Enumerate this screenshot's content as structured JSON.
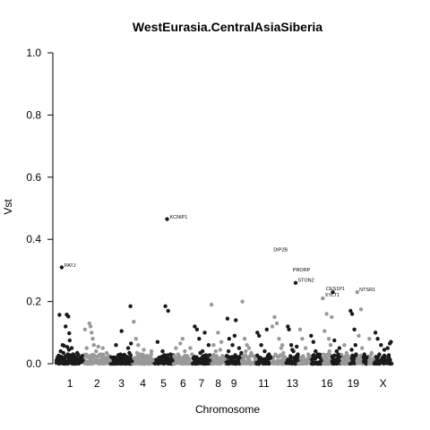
{
  "chart_data": {
    "type": "scatter",
    "title": "WestEurasia.CentralAsiaSiberia",
    "xlabel": "Chromosome",
    "ylabel": "Vst",
    "ylim": [
      0,
      1
    ],
    "yticks": [
      "0.0",
      "0.2",
      "0.4",
      "0.6",
      "0.8",
      "1.0"
    ],
    "grid": false,
    "legend": "none",
    "colors": {
      "odd": "#1a1a1a",
      "even": "#999999"
    },
    "chromosomes": [
      {
        "label": "1",
        "shown": true,
        "start": 0,
        "len": 248
      },
      {
        "label": "2",
        "shown": true,
        "start": 248,
        "len": 242
      },
      {
        "label": "3",
        "shown": true,
        "start": 490,
        "len": 198
      },
      {
        "label": "4",
        "shown": true,
        "start": 688,
        "len": 190
      },
      {
        "label": "5",
        "shown": true,
        "start": 878,
        "len": 181
      },
      {
        "label": "6",
        "shown": true,
        "start": 1059,
        "len": 171
      },
      {
        "label": "7",
        "shown": true,
        "start": 1230,
        "len": 159
      },
      {
        "label": "8",
        "shown": true,
        "start": 1389,
        "len": 145
      },
      {
        "label": "9",
        "shown": true,
        "start": 1534,
        "len": 138
      },
      {
        "label": "10",
        "shown": false,
        "start": 1672,
        "len": 134
      },
      {
        "label": "11",
        "shown": true,
        "start": 1806,
        "len": 135
      },
      {
        "label": "12",
        "shown": false,
        "start": 1941,
        "len": 133
      },
      {
        "label": "13",
        "shown": true,
        "start": 2074,
        "len": 114
      },
      {
        "label": "14",
        "shown": false,
        "start": 2188,
        "len": 107
      },
      {
        "label": "15",
        "shown": false,
        "start": 2295,
        "len": 102
      },
      {
        "label": "16",
        "shown": true,
        "start": 2397,
        "len": 90
      },
      {
        "label": "17",
        "shown": false,
        "start": 2487,
        "len": 83
      },
      {
        "label": "18",
        "shown": false,
        "start": 2570,
        "len": 80
      },
      {
        "label": "19",
        "shown": true,
        "start": 2650,
        "len": 59
      },
      {
        "label": "20",
        "shown": false,
        "start": 2709,
        "len": 64
      },
      {
        "label": "21",
        "shown": false,
        "start": 2773,
        "len": 47
      },
      {
        "label": "22",
        "shown": false,
        "start": 2820,
        "len": 51
      },
      {
        "label": "X",
        "shown": true,
        "start": 2871,
        "len": 156
      }
    ],
    "xlim": [
      -30,
      3057
    ],
    "series": [
      {
        "points": [
          [
            50,
            0.31
          ],
          [
            30,
            0.157
          ],
          [
            95,
            0.158
          ],
          [
            110,
            0.152
          ],
          [
            118,
            0.098
          ],
          [
            70,
            0.058
          ],
          [
            85,
            0.12
          ],
          [
            122,
            0.075
          ],
          [
            58,
            0.06
          ],
          [
            100,
            0.054
          ],
          [
            40,
            0.04
          ],
          [
            65,
            0.035
          ],
          [
            105,
            0.03
          ],
          [
            150,
            0.03
          ],
          [
            180,
            0.02
          ],
          [
            210,
            0.015
          ],
          [
            235,
            0.025
          ],
          [
            20,
            0.015
          ],
          [
            75,
            0.01
          ],
          [
            130,
            0.012
          ],
          [
            160,
            0.01
          ],
          [
            200,
            0.008
          ],
          [
            12,
            0.02
          ],
          [
            90,
            0.025
          ],
          [
            140,
            0.05
          ],
          [
            225,
            0.005
          ],
          [
            190,
            0.035
          ],
          [
            115,
            0.045
          ],
          [
            240,
            0.01
          ],
          [
            55,
            0.008
          ],
          [
            510,
            0.01
          ],
          [
            540,
            0.06
          ],
          [
            560,
            0.02
          ],
          [
            580,
            0.03
          ],
          [
            600,
            0.015
          ],
          [
            620,
            0.012
          ],
          [
            640,
            0.01
          ],
          [
            660,
            0.035
          ],
          [
            670,
            0.185
          ],
          [
            675,
            0.065
          ],
          [
            650,
            0.05
          ],
          [
            590,
            0.105
          ],
          [
            530,
            0.02
          ],
          [
            620,
            0.025
          ],
          [
            683,
            0.008
          ],
          [
            900,
            0.005
          ],
          [
            930,
            0.02
          ],
          [
            960,
            0.04
          ],
          [
            985,
            0.185
          ],
          [
            1000,
            0.465
          ],
          [
            1010,
            0.17
          ],
          [
            1030,
            0.03
          ],
          [
            1050,
            0.01
          ],
          [
            915,
            0.07
          ],
          [
            945,
            0.012
          ],
          [
            970,
            0.008
          ],
          [
            1020,
            0.015
          ],
          [
            1250,
            0.12
          ],
          [
            1270,
            0.11
          ],
          [
            1290,
            0.08
          ],
          [
            1320,
            0.04
          ],
          [
            1350,
            0.02
          ],
          [
            1375,
            0.06
          ],
          [
            1340,
            0.1
          ],
          [
            1300,
            0.035
          ],
          [
            1260,
            0.015
          ],
          [
            1385,
            0.01
          ],
          [
            1545,
            0.145
          ],
          [
            1560,
            0.08
          ],
          [
            1590,
            0.06
          ],
          [
            1620,
            0.14
          ],
          [
            1650,
            0.05
          ],
          [
            1670,
            0.035
          ],
          [
            1600,
            0.02
          ],
          [
            1635,
            0.015
          ],
          [
            1575,
            0.01
          ],
          [
            1555,
            0.04
          ],
          [
            1610,
            0.09
          ],
          [
            1815,
            0.1
          ],
          [
            1830,
            0.09
          ],
          [
            1850,
            0.06
          ],
          [
            1880,
            0.04
          ],
          [
            1900,
            0.11
          ],
          [
            1920,
            0.03
          ],
          [
            1935,
            0.02
          ],
          [
            1860,
            0.012
          ],
          [
            1845,
            0.008
          ],
          [
            1910,
            0.015
          ],
          [
            2090,
            0.12
          ],
          [
            2100,
            0.11
          ],
          [
            2120,
            0.06
          ],
          [
            2140,
            0.04
          ],
          [
            2160,
            0.26
          ],
          [
            2170,
            0.055
          ],
          [
            2180,
            0.03
          ],
          [
            2150,
            0.012
          ],
          [
            2110,
            0.015
          ],
          [
            2130,
            0.045
          ],
          [
            2405,
            0.21
          ],
          [
            2420,
            0.105
          ],
          [
            2440,
            0.16
          ],
          [
            2460,
            0.08
          ],
          [
            2475,
            0.06
          ],
          [
            2485,
            0.15
          ],
          [
            2450,
            0.03
          ],
          [
            2430,
            0.015
          ],
          [
            2465,
            0.04
          ],
          [
            2655,
            0.17
          ],
          [
            2670,
            0.16
          ],
          [
            2690,
            0.11
          ],
          [
            2700,
            0.06
          ],
          [
            2705,
            0.03
          ],
          [
            2680,
            0.02
          ],
          [
            2665,
            0.045
          ],
          [
            2880,
            0.1
          ],
          [
            2900,
            0.08
          ],
          [
            2930,
            0.06
          ],
          [
            2960,
            0.045
          ],
          [
            2990,
            0.05
          ],
          [
            3010,
            0.065
          ],
          [
            3020,
            0.07
          ],
          [
            2945,
            0.02
          ],
          [
            2975,
            0.012
          ],
          [
            2915,
            0.03
          ],
          [
            2890,
            0.015
          ]
        ]
      },
      {
        "points": [
          [
            260,
            0.11
          ],
          [
            275,
            0.05
          ],
          [
            300,
            0.13
          ],
          [
            310,
            0.12
          ],
          [
            320,
            0.1
          ],
          [
            340,
            0.06
          ],
          [
            360,
            0.04
          ],
          [
            380,
            0.055
          ],
          [
            400,
            0.03
          ],
          [
            420,
            0.05
          ],
          [
            440,
            0.02
          ],
          [
            470,
            0.015
          ],
          [
            290,
            0.02
          ],
          [
            330,
            0.08
          ],
          [
            350,
            0.015
          ],
          [
            455,
            0.035
          ],
          [
            485,
            0.01
          ],
          [
            390,
            0.008
          ],
          [
            700,
            0.135
          ],
          [
            720,
            0.08
          ],
          [
            740,
            0.06
          ],
          [
            760,
            0.03
          ],
          [
            790,
            0.045
          ],
          [
            820,
            0.015
          ],
          [
            850,
            0.02
          ],
          [
            870,
            0.01
          ],
          [
            730,
            0.035
          ],
          [
            800,
            0.008
          ],
          [
            860,
            0.04
          ],
          [
            1080,
            0.05
          ],
          [
            1100,
            0.03
          ],
          [
            1120,
            0.065
          ],
          [
            1140,
            0.08
          ],
          [
            1160,
            0.04
          ],
          [
            1180,
            0.025
          ],
          [
            1200,
            0.015
          ],
          [
            1225,
            0.03
          ],
          [
            1110,
            0.01
          ],
          [
            1170,
            0.012
          ],
          [
            1210,
            0.05
          ],
          [
            1400,
            0.19
          ],
          [
            1420,
            0.06
          ],
          [
            1440,
            0.04
          ],
          [
            1460,
            0.1
          ],
          [
            1480,
            0.045
          ],
          [
            1500,
            0.025
          ],
          [
            1520,
            0.015
          ],
          [
            1450,
            0.01
          ],
          [
            1490,
            0.07
          ],
          [
            1680,
            0.2
          ],
          [
            1700,
            0.08
          ],
          [
            1720,
            0.06
          ],
          [
            1740,
            0.05
          ],
          [
            1760,
            0.035
          ],
          [
            1780,
            0.025
          ],
          [
            1800,
            0.015
          ],
          [
            1730,
            0.01
          ],
          [
            1710,
            0.04
          ],
          [
            1950,
            0.12
          ],
          [
            1970,
            0.15
          ],
          [
            1990,
            0.13
          ],
          [
            2010,
            0.08
          ],
          [
            2030,
            0.05
          ],
          [
            2050,
            0.035
          ],
          [
            2065,
            0.02
          ],
          [
            2000,
            0.01
          ],
          [
            2040,
            0.06
          ],
          [
            2200,
            0.11
          ],
          [
            2220,
            0.08
          ],
          [
            2250,
            0.05
          ],
          [
            2275,
            0.03
          ],
          [
            2290,
            0.02
          ],
          [
            2300,
            0.09
          ],
          [
            2320,
            0.07
          ],
          [
            2340,
            0.04
          ],
          [
            2360,
            0.03
          ],
          [
            2380,
            0.02
          ],
          [
            2390,
            0.01
          ],
          [
            2310,
            0.015
          ],
          [
            2495,
            0.23
          ],
          [
            2510,
            0.075
          ],
          [
            2530,
            0.04
          ],
          [
            2545,
            0.03
          ],
          [
            2565,
            0.02
          ],
          [
            2580,
            0.015
          ],
          [
            2600,
            0.06
          ],
          [
            2620,
            0.035
          ],
          [
            2640,
            0.01
          ],
          [
            2555,
            0.05
          ],
          [
            2715,
            0.23
          ],
          [
            2730,
            0.09
          ],
          [
            2750,
            0.175
          ],
          [
            2760,
            0.05
          ],
          [
            2780,
            0.03
          ],
          [
            2800,
            0.02
          ],
          [
            2825,
            0.08
          ],
          [
            2845,
            0.035
          ],
          [
            2860,
            0.015
          ],
          [
            2790,
            0.01
          ]
        ]
      }
    ],
    "annotations": [
      {
        "label": "PATJ",
        "x": 50,
        "y": 0.31
      },
      {
        "label": "KCNIP1",
        "x": 1000,
        "y": 0.465
      },
      {
        "label": "DIP2B",
        "x": 1935,
        "y": 0.36
      },
      {
        "label": "PRORP",
        "x": 2110,
        "y": 0.295
      },
      {
        "label": "STON2",
        "x": 2155,
        "y": 0.262
      },
      {
        "label": "CES1P1",
        "x": 2410,
        "y": 0.235
      },
      {
        "label": "XYLT1",
        "x": 2400,
        "y": 0.215
      },
      {
        "label": "NTSR1",
        "x": 2710,
        "y": 0.232
      }
    ]
  }
}
